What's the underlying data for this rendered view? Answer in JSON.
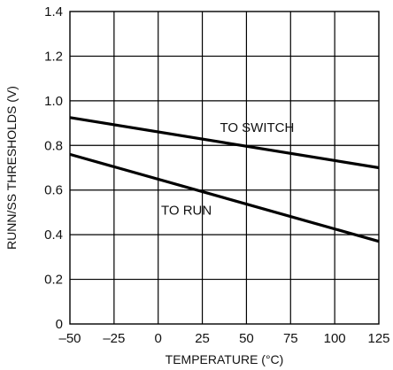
{
  "chart_data": {
    "type": "line",
    "title": "",
    "xlabel": "TEMPERATURE (°C)",
    "ylabel": "RUNN/SS THRESHOLDS (V)",
    "xlim": [
      -50,
      125
    ],
    "ylim": [
      0,
      1.4
    ],
    "xticks": [
      -50,
      -25,
      0,
      25,
      50,
      75,
      100,
      125
    ],
    "yticks": [
      0,
      0.2,
      0.4,
      0.6,
      0.8,
      1.0,
      1.2,
      1.4
    ],
    "xtick_labels": [
      "–50",
      "–25",
      "0",
      "25",
      "50",
      "75",
      "100",
      "125"
    ],
    "ytick_labels": [
      "0",
      "0.2",
      "0.4",
      "0.6",
      "0.8",
      "1.0",
      "1.2",
      "1.4"
    ],
    "grid": true,
    "series": [
      {
        "name": "TO SWITCH",
        "x": [
          -50,
          125
        ],
        "y": [
          0.925,
          0.7
        ]
      },
      {
        "name": "TO RUN",
        "x": [
          -50,
          125
        ],
        "y": [
          0.76,
          0.37
        ]
      }
    ],
    "annotations": [
      {
        "text": "TO SWITCH",
        "x": 56,
        "y": 0.86
      },
      {
        "text": "TO RUN",
        "x": 16,
        "y": 0.49
      }
    ]
  }
}
